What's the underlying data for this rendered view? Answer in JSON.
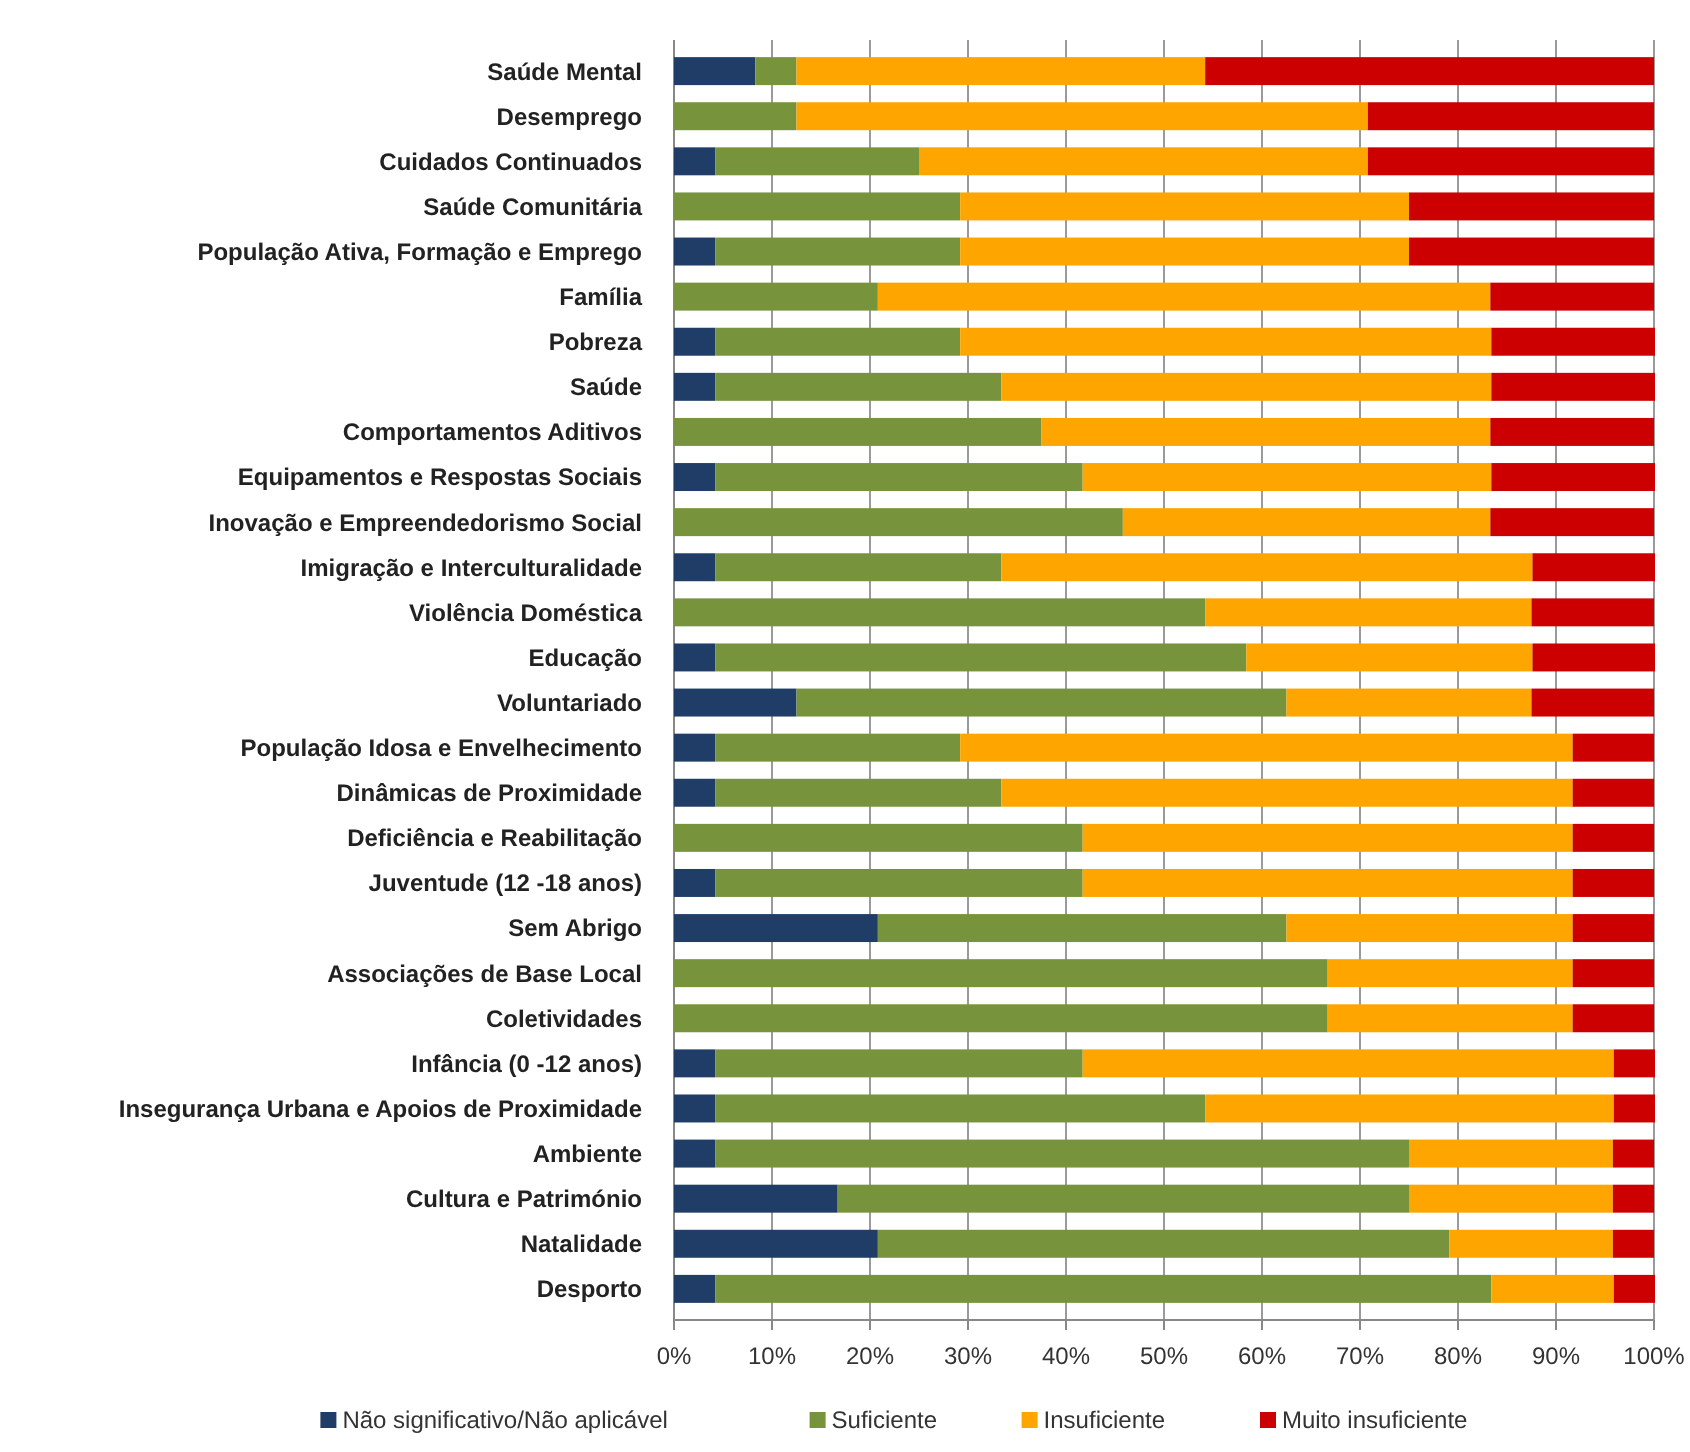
{
  "chart_data": {
    "type": "bar",
    "orientation": "horizontal",
    "stacked": true,
    "categories": [
      "Saúde Mental",
      "Desemprego",
      "Cuidados Continuados",
      "Saúde Comunitária",
      "População Ativa, Formação e Emprego",
      "Família",
      "Pobreza",
      "Saúde",
      "Comportamentos Aditivos",
      "Equipamentos e Respostas Sociais",
      "Inovação e Empreendedorismo Social",
      "Imigração e Interculturalidade",
      "Violência Doméstica",
      "Educação",
      "Voluntariado",
      "População Idosa e Envelhecimento",
      "Dinâmicas de Proximidade",
      "Deficiência e Reabilitação",
      "Juventude (12 -18 anos)",
      "Sem Abrigo",
      "Associações de Base Local",
      "Coletividades",
      "Infância (0 -12 anos)",
      "Insegurança Urbana e Apoios de Proximidade",
      "Ambiente",
      "Cultura e Património",
      "Natalidade",
      "Desporto"
    ],
    "series": [
      {
        "name": "Não significativo/Não aplicável",
        "color": "#1f3d66",
        "values": [
          8.3,
          0,
          4.2,
          0,
          4.2,
          0,
          4.2,
          4.2,
          0,
          4.2,
          0,
          4.2,
          0,
          4.2,
          12.5,
          4.2,
          4.2,
          0,
          4.2,
          20.8,
          0,
          0,
          4.2,
          4.2,
          4.2,
          16.7,
          20.8,
          4.2
        ]
      },
      {
        "name": "Suficiente",
        "color": "#77933c",
        "values": [
          4.2,
          12.5,
          20.8,
          29.2,
          25,
          20.8,
          25,
          29.2,
          37.5,
          37.5,
          45.8,
          29.2,
          54.2,
          54.2,
          50,
          25,
          29.2,
          41.7,
          37.5,
          41.7,
          66.7,
          66.7,
          37.5,
          50,
          70.8,
          58.3,
          58.3,
          79.2
        ]
      },
      {
        "name": "Insuficiente",
        "color": "#ffa500",
        "values": [
          41.7,
          58.3,
          45.8,
          45.8,
          45.8,
          62.5,
          54.2,
          50,
          45.8,
          41.7,
          37.5,
          54.2,
          33.3,
          29.2,
          25,
          62.5,
          58.3,
          50,
          50,
          29.2,
          25,
          25,
          54.2,
          41.7,
          20.8,
          20.8,
          16.7,
          12.5
        ]
      },
      {
        "name": "Muito insuficiente",
        "color": "#cc0000",
        "values": [
          45.8,
          29.2,
          29.2,
          25,
          25,
          16.7,
          16.7,
          16.7,
          16.7,
          16.7,
          16.7,
          12.5,
          12.5,
          12.5,
          12.5,
          8.3,
          8.3,
          8.3,
          8.3,
          8.3,
          8.3,
          8.3,
          4.2,
          4.2,
          4.2,
          4.2,
          4.2,
          4.2
        ]
      }
    ],
    "xlim": [
      0,
      100
    ],
    "xticks": [
      {
        "value": 0,
        "label": "0%"
      },
      {
        "value": 10,
        "label": "10%"
      },
      {
        "value": 20,
        "label": "20%"
      },
      {
        "value": 30,
        "label": "30%"
      },
      {
        "value": 40,
        "label": "40%"
      },
      {
        "value": 50,
        "label": "50%"
      },
      {
        "value": 60,
        "label": "60%"
      },
      {
        "value": 70,
        "label": "70%"
      },
      {
        "value": 80,
        "label": "80%"
      },
      {
        "value": 90,
        "label": "90%"
      },
      {
        "value": 100,
        "label": "100%"
      }
    ],
    "grid": "x",
    "legend": "bottom"
  }
}
